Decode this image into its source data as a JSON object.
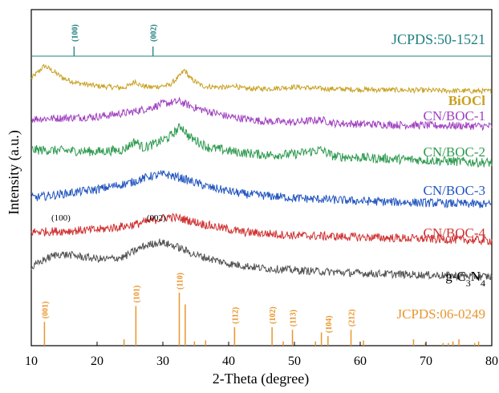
{
  "chart_data": {
    "type": "line",
    "xlabel": "2-Theta (degree)",
    "ylabel": "Intensity (a.u.)",
    "xlim": [
      10,
      80
    ],
    "xticks": [
      10,
      20,
      30,
      40,
      50,
      60,
      70,
      80
    ],
    "grid": false,
    "reference_top": {
      "name": "JCPDS:50-1521",
      "color": "#1f8080",
      "peaks": [
        {
          "x": 16.5,
          "label": "(100)"
        },
        {
          "x": 28.5,
          "label": "(002)"
        }
      ]
    },
    "reference_bottom": {
      "name": "JCPDS:06-0249",
      "color": "#e8962e",
      "peaks": [
        {
          "x": 12.0,
          "h": 0.45,
          "label": "(001)"
        },
        {
          "x": 24.1,
          "h": 0.12,
          "label": ""
        },
        {
          "x": 25.9,
          "h": 0.75,
          "label": "(101)"
        },
        {
          "x": 32.5,
          "h": 1.0,
          "label": "(110)"
        },
        {
          "x": 33.4,
          "h": 0.78,
          "label": ""
        },
        {
          "x": 34.8,
          "h": 0.08,
          "label": ""
        },
        {
          "x": 36.5,
          "h": 0.1,
          "label": ""
        },
        {
          "x": 40.9,
          "h": 0.35,
          "label": "(112)"
        },
        {
          "x": 46.6,
          "h": 0.35,
          "label": "(102)"
        },
        {
          "x": 48.3,
          "h": 0.08,
          "label": ""
        },
        {
          "x": 49.7,
          "h": 0.3,
          "label": "(113)"
        },
        {
          "x": 53.2,
          "h": 0.08,
          "label": ""
        },
        {
          "x": 54.1,
          "h": 0.25,
          "label": ""
        },
        {
          "x": 55.1,
          "h": 0.18,
          "label": "(104)"
        },
        {
          "x": 58.6,
          "h": 0.3,
          "label": "(212)"
        },
        {
          "x": 60.5,
          "h": 0.1,
          "label": ""
        },
        {
          "x": 68.1,
          "h": 0.12,
          "label": ""
        },
        {
          "x": 69.9,
          "h": 0.05,
          "label": ""
        },
        {
          "x": 72.6,
          "h": 0.05,
          "label": ""
        },
        {
          "x": 73.4,
          "h": 0.05,
          "label": ""
        },
        {
          "x": 74.1,
          "h": 0.08,
          "label": ""
        },
        {
          "x": 75.0,
          "h": 0.12,
          "label": ""
        },
        {
          "x": 77.4,
          "h": 0.05,
          "label": ""
        },
        {
          "x": 78.0,
          "h": 0.08,
          "label": ""
        }
      ]
    },
    "series": [
      {
        "name": "BiOCl",
        "color": "#c8a020",
        "baseline": 0.0,
        "noise": 0.006,
        "label_bold": true,
        "profile": [
          [
            10,
            0.035
          ],
          [
            11,
            0.05
          ],
          [
            12,
            0.065
          ],
          [
            13,
            0.055
          ],
          [
            15,
            0.035
          ],
          [
            17,
            0.025
          ],
          [
            20,
            0.018
          ],
          [
            24,
            0.014
          ],
          [
            25,
            0.02
          ],
          [
            25.8,
            0.03
          ],
          [
            26.5,
            0.02
          ],
          [
            28,
            0.015
          ],
          [
            31,
            0.02
          ],
          [
            32.5,
            0.04
          ],
          [
            33.3,
            0.055
          ],
          [
            34.2,
            0.035
          ],
          [
            36,
            0.018
          ],
          [
            40,
            0.014
          ],
          [
            41,
            0.02
          ],
          [
            42,
            0.012
          ],
          [
            46,
            0.012
          ],
          [
            50,
            0.016
          ],
          [
            54,
            0.012
          ],
          [
            60,
            0.01
          ],
          [
            70,
            0.008
          ],
          [
            80,
            0.006
          ]
        ]
      },
      {
        "name": "CN/BOC-1",
        "color": "#a040c0",
        "baseline": 0.0,
        "noise": 0.009,
        "profile": [
          [
            10,
            0.02
          ],
          [
            15,
            0.022
          ],
          [
            20,
            0.025
          ],
          [
            25,
            0.035
          ],
          [
            28,
            0.045
          ],
          [
            30,
            0.055
          ],
          [
            32.5,
            0.06
          ],
          [
            35,
            0.045
          ],
          [
            40,
            0.025
          ],
          [
            45,
            0.015
          ],
          [
            50,
            0.012
          ],
          [
            54,
            0.018
          ],
          [
            56,
            0.01
          ],
          [
            60,
            0.008
          ],
          [
            70,
            0.005
          ],
          [
            80,
            0.003
          ]
        ]
      },
      {
        "name": "CN/BOC-2",
        "color": "#2e9a50",
        "baseline": 0.0,
        "noise": 0.011,
        "profile": [
          [
            10,
            0.03
          ],
          [
            15,
            0.028
          ],
          [
            20,
            0.026
          ],
          [
            24,
            0.03
          ],
          [
            25.8,
            0.05
          ],
          [
            27,
            0.035
          ],
          [
            29,
            0.045
          ],
          [
            31,
            0.06
          ],
          [
            32.8,
            0.085
          ],
          [
            34,
            0.06
          ],
          [
            37,
            0.035
          ],
          [
            41,
            0.025
          ],
          [
            46,
            0.018
          ],
          [
            50,
            0.02
          ],
          [
            54,
            0.03
          ],
          [
            56,
            0.015
          ],
          [
            60,
            0.012
          ],
          [
            70,
            0.006
          ],
          [
            80,
            0.0
          ]
        ]
      },
      {
        "name": "CN/BOC-3",
        "color": "#2255c0",
        "baseline": 0.0,
        "noise": 0.01,
        "profile": [
          [
            10,
            0.015
          ],
          [
            15,
            0.025
          ],
          [
            20,
            0.035
          ],
          [
            25,
            0.05
          ],
          [
            28,
            0.065
          ],
          [
            30.5,
            0.07
          ],
          [
            33,
            0.06
          ],
          [
            37,
            0.04
          ],
          [
            42,
            0.025
          ],
          [
            50,
            0.015
          ],
          [
            60,
            0.008
          ],
          [
            70,
            0.004
          ],
          [
            80,
            0.0
          ]
        ]
      },
      {
        "name": "CN/BOC-4",
        "color": "#d03030",
        "baseline": 0.0,
        "noise": 0.01,
        "profile": [
          [
            10,
            0.02
          ],
          [
            15,
            0.022
          ],
          [
            20,
            0.025
          ],
          [
            25,
            0.035
          ],
          [
            28,
            0.045
          ],
          [
            31,
            0.055
          ],
          [
            33,
            0.05
          ],
          [
            37,
            0.035
          ],
          [
            42,
            0.02
          ],
          [
            50,
            0.012
          ],
          [
            60,
            0.008
          ],
          [
            70,
            0.004
          ],
          [
            80,
            0.0
          ]
        ]
      },
      {
        "name": "g-C3N4",
        "color": "#505050",
        "baseline": 0.0,
        "noise": 0.009,
        "annotations": [
          {
            "x": 14.5,
            "text": "(100)"
          },
          {
            "x": 29.0,
            "text": "(002)"
          }
        ],
        "profile": [
          [
            10,
            0.02
          ],
          [
            12,
            0.04
          ],
          [
            14,
            0.052
          ],
          [
            16,
            0.05
          ],
          [
            18,
            0.045
          ],
          [
            21,
            0.04
          ],
          [
            24,
            0.045
          ],
          [
            27,
            0.07
          ],
          [
            29.5,
            0.08
          ],
          [
            32,
            0.07
          ],
          [
            35,
            0.05
          ],
          [
            40,
            0.03
          ],
          [
            45,
            0.02
          ],
          [
            50,
            0.015
          ],
          [
            60,
            0.008
          ],
          [
            70,
            0.004
          ],
          [
            80,
            0.0
          ]
        ]
      }
    ]
  }
}
